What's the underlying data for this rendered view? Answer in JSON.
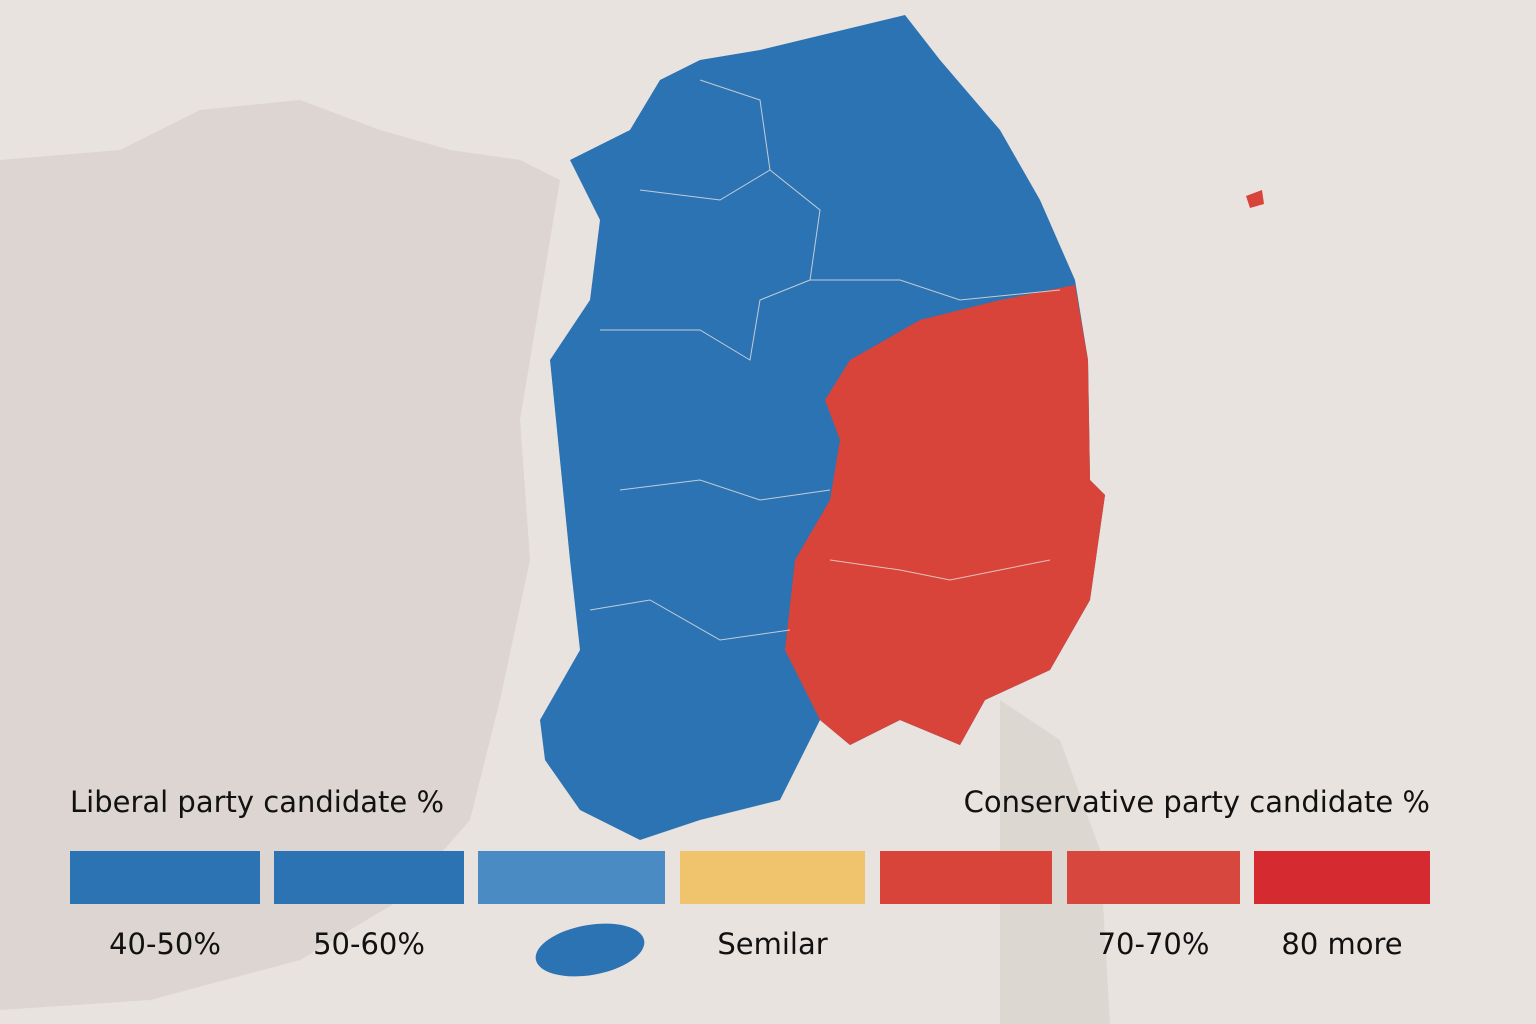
{
  "legend": {
    "liberal_title": "Liberal party candidate %",
    "conservative_title": "Conservative party candidate %",
    "items": [
      {
        "color": "#2b73b3",
        "label": "40-50%"
      },
      {
        "color": "#2b73b3",
        "label": "50-60%"
      },
      {
        "color": "#4a8bc4"
      },
      {
        "color": "#f0c46c",
        "label": "Semilar"
      },
      {
        "color": "#d8433a"
      },
      {
        "color": "#d7473d",
        "label": "70-70%"
      },
      {
        "color": "#d42a30",
        "label": "80 more"
      }
    ]
  }
}
